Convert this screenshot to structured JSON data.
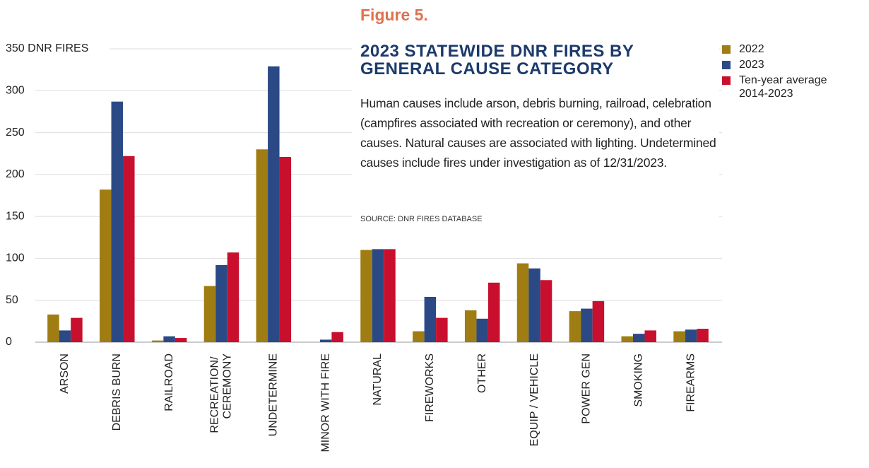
{
  "chart_data": {
    "type": "bar",
    "figure_label": "Figure 5.",
    "title": "2023 STATEWIDE DNR FIRES BY GENERAL CAUSE CATEGORY",
    "subtitle": "Human causes include arson, debris burning, railroad, celebration (campfires associated with recreation or ceremony), and other causes. Natural causes are associated with lighting. Undetermined causes include fires under investigation as of 12/31/2023.",
    "source": "SOURCE: DNR FIRES DATABASE",
    "categories": [
      "ARSON",
      "DEBRIS BURN",
      "RAILROAD",
      "RECREATION/\nCEREMONY",
      "UNDETERMINE",
      "MINOR WITH FIRE",
      "NATURAL",
      "FIREWORKS",
      "OTHER",
      "EQUIP / VEHICLE",
      "POWER GEN",
      "SMOKING",
      "FIREARMS"
    ],
    "series": [
      {
        "name": "2022",
        "color": "#a07d12",
        "values": [
          33,
          182,
          2,
          67,
          230,
          0,
          110,
          13,
          38,
          94,
          37,
          7,
          13
        ]
      },
      {
        "name": "2023",
        "color": "#2b4a85",
        "values": [
          14,
          287,
          7,
          92,
          329,
          3,
          111,
          54,
          28,
          88,
          40,
          10,
          15
        ]
      },
      {
        "name": "Ten-year average\n2014-2023",
        "color": "#c8102e",
        "values": [
          29,
          222,
          5,
          107,
          221,
          12,
          111,
          29,
          71,
          74,
          49,
          14,
          16
        ]
      }
    ],
    "ylim": [
      0,
      350
    ],
    "yticks": [
      0,
      50,
      100,
      150,
      200,
      250,
      300,
      {
        "value": 350,
        "label": "350 DNR FIRES"
      }
    ],
    "grid": true,
    "legend": "top-right"
  }
}
